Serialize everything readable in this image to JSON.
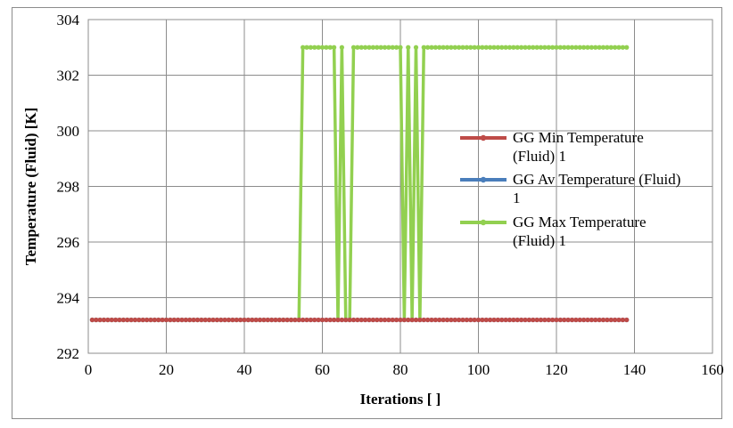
{
  "chart_data": {
    "type": "line",
    "xlabel": "Iterations [ ]",
    "ylabel": "Temperature (Fluid) [K]",
    "xlim": [
      0,
      160
    ],
    "ylim": [
      292,
      304
    ],
    "xticks": [
      0,
      20,
      40,
      60,
      80,
      100,
      120,
      140,
      160
    ],
    "yticks": [
      292,
      294,
      296,
      298,
      300,
      302,
      304
    ],
    "grid": true,
    "legend_position": "right",
    "series": [
      {
        "name": "GG Min Temperature\n(Fluid) 1",
        "color": "#be4b48",
        "x": [
          1,
          138
        ],
        "y": [
          293.2,
          293.2
        ]
      },
      {
        "name": "GG Av Temperature (Fluid)\n1",
        "color": "#4a7ebb",
        "x": [
          1,
          54,
          55,
          138
        ],
        "y": [
          293.2,
          293.2,
          293.2,
          293.2
        ]
      },
      {
        "name": "GG Max Temperature\n(Fluid) 1",
        "color": "#92d050",
        "x": [
          1,
          54,
          55,
          63,
          64,
          65,
          66,
          67,
          68,
          80,
          81,
          82,
          83,
          84,
          85,
          86,
          138
        ],
        "y": [
          293.2,
          293.2,
          303.0,
          303.0,
          293.2,
          303.0,
          293.2,
          293.2,
          303.0,
          303.0,
          293.2,
          303.0,
          293.2,
          303.0,
          293.2,
          303.0,
          303.0
        ]
      }
    ]
  }
}
